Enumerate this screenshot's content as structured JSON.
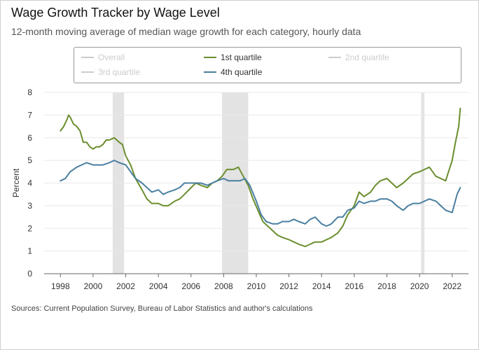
{
  "header": {
    "title": "Wage Growth Tracker by Wage Level",
    "subtitle": "12-month moving average of median wage growth for each category, hourly data"
  },
  "footer": {
    "source": "Sources: Current Population Survey, Bureau of Labor Statistics and author's calculations"
  },
  "chart_data": {
    "type": "line",
    "title": "Wage Growth Tracker by Wage Level",
    "subtitle": "12-month moving average of median wage growth for each category, hourly data",
    "xlabel": "",
    "ylabel": "Percent",
    "xlim": [
      1997.0,
      2023.0
    ],
    "ylim": [
      0,
      8
    ],
    "yticks": [
      0,
      1,
      2,
      3,
      4,
      5,
      6,
      7,
      8
    ],
    "xticks": [
      1998,
      2000,
      2002,
      2004,
      2006,
      2008,
      2010,
      2012,
      2014,
      2016,
      2018,
      2020,
      2022
    ],
    "grid": "horizontal",
    "legend_position": "top",
    "legend": [
      {
        "name": "Overall",
        "color": "#cccccc",
        "visible": false
      },
      {
        "name": "1st quartile",
        "color": "#6b8e2e",
        "visible": true
      },
      {
        "name": "2nd quartile",
        "color": "#cccccc",
        "visible": false
      },
      {
        "name": "3rd quartile",
        "color": "#cccccc",
        "visible": false
      },
      {
        "name": "4th quartile",
        "color": "#4a7fa0",
        "visible": true
      }
    ],
    "recessions": [
      {
        "start": 2001.2,
        "end": 2001.9
      },
      {
        "start": 2007.9,
        "end": 2009.5
      },
      {
        "start": 2020.1,
        "end": 2020.3
      }
    ],
    "series": [
      {
        "name": "1st quartile",
        "color": "#6b8e2e",
        "x": [
          1998.0,
          1998.2,
          1998.4,
          1998.5,
          1998.6,
          1998.8,
          1999.0,
          1999.2,
          1999.4,
          1999.6,
          1999.8,
          2000.0,
          2000.2,
          2000.4,
          2000.6,
          2000.8,
          2001.0,
          2001.3,
          2001.6,
          2001.8,
          2002.0,
          2002.3,
          2002.6,
          2003.0,
          2003.3,
          2003.6,
          2004.0,
          2004.3,
          2004.6,
          2005.0,
          2005.3,
          2005.6,
          2006.0,
          2006.3,
          2006.6,
          2007.0,
          2007.3,
          2007.6,
          2007.9,
          2008.2,
          2008.4,
          2008.6,
          2008.9,
          2009.2,
          2009.5,
          2009.8,
          2010.1,
          2010.4,
          2010.7,
          2011.0,
          2011.3,
          2011.6,
          2012.0,
          2012.3,
          2012.6,
          2013.0,
          2013.3,
          2013.6,
          2014.0,
          2014.3,
          2014.6,
          2015.0,
          2015.3,
          2015.6,
          2016.0,
          2016.3,
          2016.6,
          2017.0,
          2017.3,
          2017.6,
          2018.0,
          2018.3,
          2018.6,
          2019.0,
          2019.3,
          2019.6,
          2020.0,
          2020.3,
          2020.6,
          2021.0,
          2021.3,
          2021.6,
          2022.0,
          2022.2,
          2022.4,
          2022.5
        ],
        "values": [
          6.3,
          6.5,
          6.8,
          7.0,
          6.9,
          6.6,
          6.5,
          6.3,
          5.8,
          5.8,
          5.6,
          5.5,
          5.6,
          5.6,
          5.7,
          5.9,
          5.9,
          6.0,
          5.8,
          5.7,
          5.2,
          4.8,
          4.2,
          3.7,
          3.3,
          3.1,
          3.1,
          3.0,
          3.0,
          3.2,
          3.3,
          3.5,
          3.8,
          4.0,
          3.9,
          3.8,
          4.0,
          4.1,
          4.3,
          4.6,
          4.6,
          4.6,
          4.7,
          4.3,
          3.9,
          3.3,
          2.8,
          2.3,
          2.1,
          1.9,
          1.7,
          1.6,
          1.5,
          1.4,
          1.3,
          1.2,
          1.3,
          1.4,
          1.4,
          1.5,
          1.6,
          1.8,
          2.1,
          2.6,
          3.0,
          3.6,
          3.4,
          3.6,
          3.9,
          4.1,
          4.2,
          4.0,
          3.8,
          4.0,
          4.2,
          4.4,
          4.5,
          4.6,
          4.7,
          4.3,
          4.2,
          4.1,
          5.0,
          5.8,
          6.5,
          7.3
        ]
      },
      {
        "name": "4th quartile",
        "color": "#4a7fa0",
        "x": [
          1998.0,
          1998.3,
          1998.6,
          1999.0,
          1999.3,
          1999.6,
          2000.0,
          2000.3,
          2000.6,
          2001.0,
          2001.3,
          2001.6,
          2002.0,
          2002.3,
          2002.6,
          2003.0,
          2003.3,
          2003.6,
          2004.0,
          2004.3,
          2004.6,
          2005.0,
          2005.3,
          2005.6,
          2006.0,
          2006.3,
          2006.6,
          2007.0,
          2007.3,
          2007.6,
          2008.0,
          2008.3,
          2008.6,
          2009.0,
          2009.3,
          2009.6,
          2010.0,
          2010.3,
          2010.6,
          2011.0,
          2011.3,
          2011.6,
          2012.0,
          2012.3,
          2012.6,
          2013.0,
          2013.3,
          2013.6,
          2014.0,
          2014.3,
          2014.6,
          2015.0,
          2015.3,
          2015.6,
          2016.0,
          2016.3,
          2016.6,
          2017.0,
          2017.3,
          2017.6,
          2018.0,
          2018.3,
          2018.6,
          2019.0,
          2019.3,
          2019.6,
          2020.0,
          2020.3,
          2020.6,
          2021.0,
          2021.3,
          2021.6,
          2022.0,
          2022.3,
          2022.5
        ],
        "values": [
          4.1,
          4.2,
          4.5,
          4.7,
          4.8,
          4.9,
          4.8,
          4.8,
          4.8,
          4.9,
          5.0,
          4.9,
          4.8,
          4.5,
          4.2,
          4.0,
          3.8,
          3.6,
          3.7,
          3.5,
          3.6,
          3.7,
          3.8,
          4.0,
          4.0,
          4.0,
          4.0,
          3.9,
          4.0,
          4.1,
          4.2,
          4.1,
          4.1,
          4.1,
          4.2,
          3.9,
          3.2,
          2.6,
          2.3,
          2.2,
          2.2,
          2.3,
          2.3,
          2.4,
          2.3,
          2.2,
          2.4,
          2.5,
          2.2,
          2.1,
          2.2,
          2.5,
          2.5,
          2.8,
          2.9,
          3.2,
          3.1,
          3.2,
          3.2,
          3.3,
          3.3,
          3.2,
          3.0,
          2.8,
          3.0,
          3.1,
          3.1,
          3.2,
          3.3,
          3.2,
          3.0,
          2.8,
          2.7,
          3.5,
          3.8
        ]
      }
    ]
  }
}
